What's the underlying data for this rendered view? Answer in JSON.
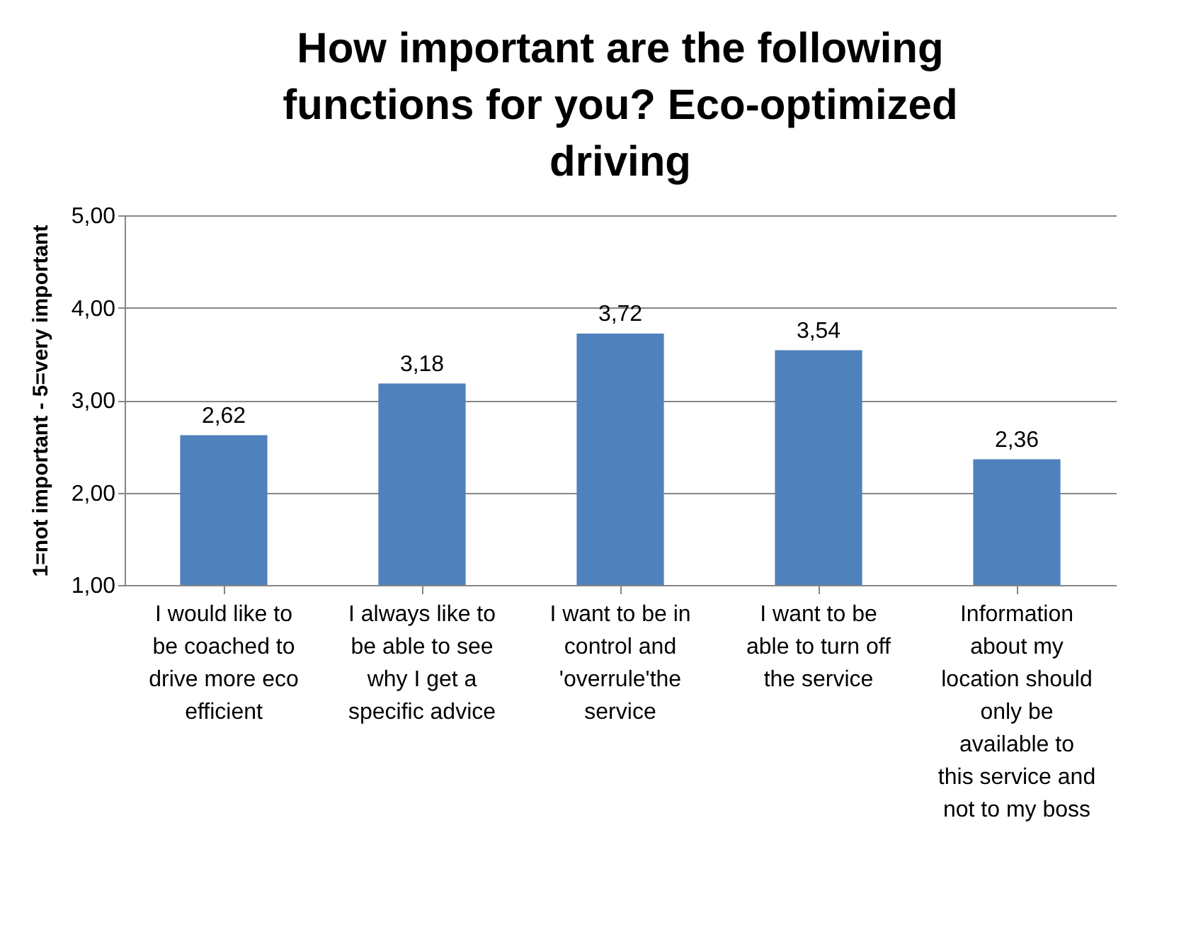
{
  "chart_data": {
    "type": "bar",
    "title": "How important are the following functions for you? Eco-optimized driving",
    "ylabel": "1=not important - 5=very important",
    "categories": [
      "I would like to be coached to drive more eco efficient",
      "I always like to be able to see why I get a specific advice",
      "I want to be in control and 'overrule'the service",
      "I want to be able to turn off the service",
      "Information about my location should only be available to this service and not to my boss"
    ],
    "values": [
      2.62,
      3.18,
      3.72,
      3.54,
      2.36
    ],
    "value_labels": [
      "2,62",
      "3,18",
      "3,72",
      "3,54",
      "2,36"
    ],
    "color": "#4f81bd",
    "ylim": [
      1,
      5
    ],
    "yticks": [
      {
        "value": 1,
        "label": "1,00"
      },
      {
        "value": 2,
        "label": "2,00"
      },
      {
        "value": 3,
        "label": "3,00"
      },
      {
        "value": 4,
        "label": "4,00"
      },
      {
        "value": 5,
        "label": "5,00"
      }
    ],
    "grid": "y"
  }
}
